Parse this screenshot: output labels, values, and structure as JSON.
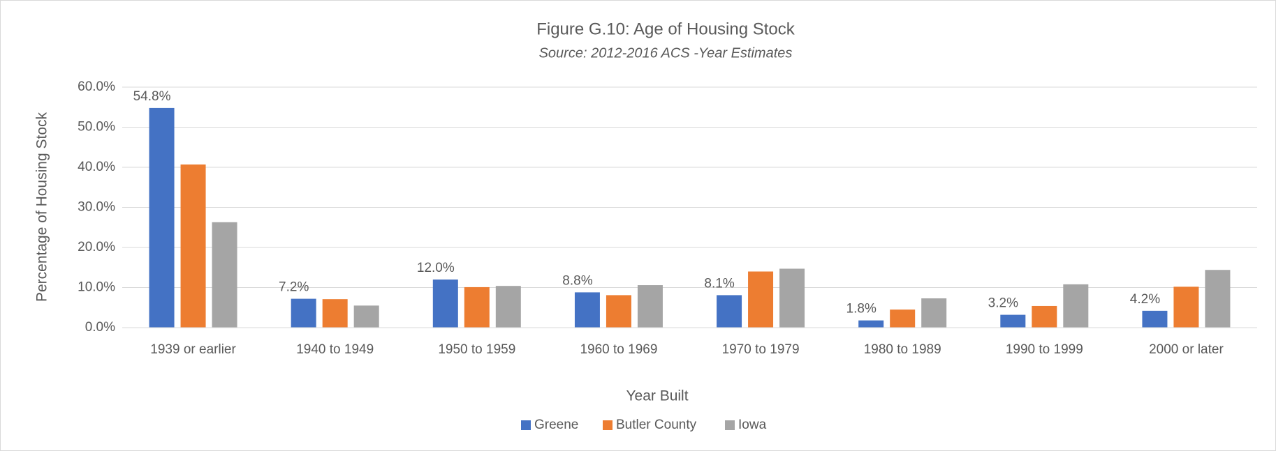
{
  "chart_data": {
    "type": "bar",
    "title": "Figure G.10: Age of Housing Stock",
    "subtitle": "Source: 2012-2016 ACS -Year Estimates",
    "x_label": "Year Built",
    "y_label": "Percentage of Housing Stock",
    "categories": [
      "1939 or earlier",
      "1940 to 1949",
      "1950 to 1959",
      "1960 to 1969",
      "1970 to 1979",
      "1980 to 1989",
      "1990 to 1999",
      "2000 or later"
    ],
    "series": [
      {
        "name": "Greene",
        "color": "#4472c4",
        "values": [
          54.8,
          7.2,
          12.0,
          8.8,
          8.1,
          1.8,
          3.2,
          4.2
        ],
        "value_labels": [
          "54.8%",
          "7.2%",
          "12.0%",
          "8.8%",
          "8.1%",
          "1.8%",
          "3.2%",
          "4.2%"
        ]
      },
      {
        "name": "Butler County",
        "color": "#ed7d31",
        "values": [
          40.7,
          7.1,
          10.1,
          8.1,
          14.0,
          4.5,
          5.4,
          10.2
        ]
      },
      {
        "name": "Iowa",
        "color": "#a5a5a5",
        "values": [
          26.3,
          5.5,
          10.4,
          10.6,
          14.7,
          7.3,
          10.8,
          14.4
        ]
      }
    ],
    "ylim": [
      0,
      60
    ],
    "yticks": [
      {
        "value": 0,
        "label": "0.0%"
      },
      {
        "value": 10,
        "label": "10.0%"
      },
      {
        "value": 20,
        "label": "20.0%"
      },
      {
        "value": 30,
        "label": "30.0%"
      },
      {
        "value": 40,
        "label": "40.0%"
      },
      {
        "value": 50,
        "label": "50.0%"
      },
      {
        "value": 60,
        "label": "60.0%"
      }
    ],
    "grid": true,
    "legend": "bottom"
  }
}
